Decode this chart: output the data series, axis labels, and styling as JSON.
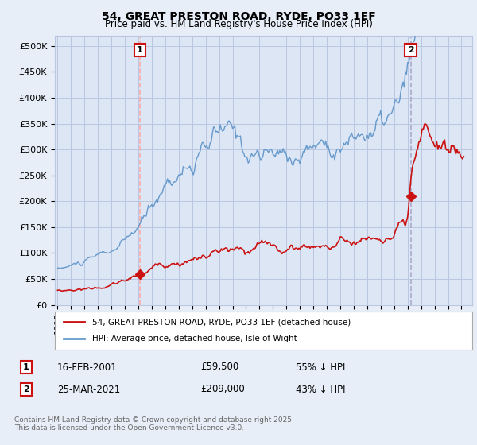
{
  "title": "54, GREAT PRESTON ROAD, RYDE, PO33 1EF",
  "subtitle": "Price paid vs. HM Land Registry's House Price Index (HPI)",
  "bg_color": "#e8eef8",
  "plot_bg_color": "#dce6f5",
  "grid_color": "#b8c8e0",
  "ylim": [
    0,
    520000
  ],
  "yticks": [
    0,
    50000,
    100000,
    150000,
    200000,
    250000,
    300000,
    350000,
    400000,
    450000,
    500000
  ],
  "ytick_labels": [
    "£0",
    "£50K",
    "£100K",
    "£150K",
    "£200K",
    "£250K",
    "£300K",
    "£350K",
    "£400K",
    "£450K",
    "£500K"
  ],
  "hpi_color": "#6699cc",
  "price_color": "#cc1111",
  "vline1_color": "#ffaaaa",
  "vline2_color": "#aaaacc",
  "marker1_year": 2001.12,
  "marker1_price": 59500,
  "marker2_year": 2021.23,
  "marker2_price": 209000,
  "legend_label1": "54, GREAT PRESTON ROAD, RYDE, PO33 1EF (detached house)",
  "legend_label2": "HPI: Average price, detached house, Isle of Wight",
  "annotation1_label": "1",
  "annotation1_date": "16-FEB-2001",
  "annotation1_price": "£59,500",
  "annotation1_hpi": "55% ↓ HPI",
  "annotation2_label": "2",
  "annotation2_date": "25-MAR-2021",
  "annotation2_price": "£209,000",
  "annotation2_hpi": "43% ↓ HPI",
  "footer": "Contains HM Land Registry data © Crown copyright and database right 2025.\nThis data is licensed under the Open Government Licence v3.0.",
  "xlim_start": 1994.8,
  "xlim_end": 2025.8
}
